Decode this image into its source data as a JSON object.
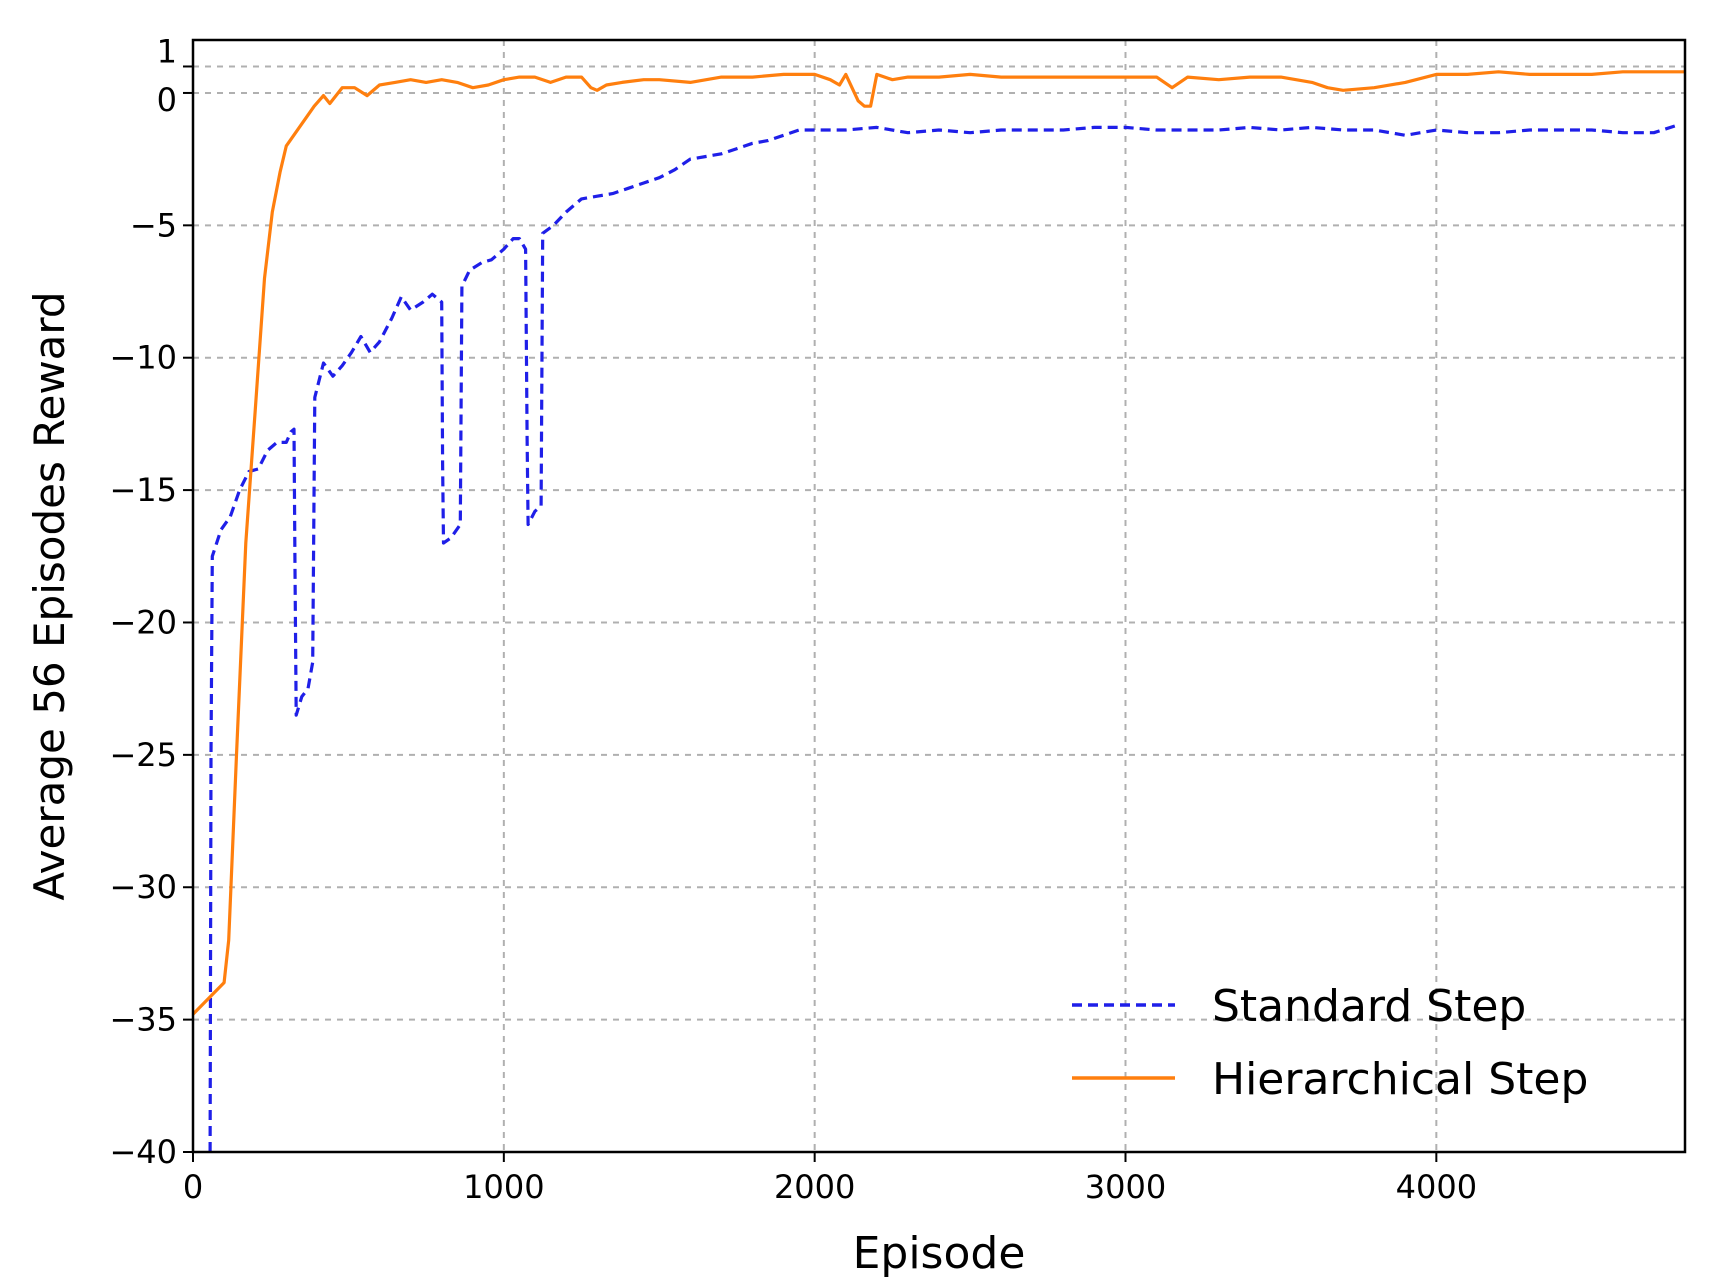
{
  "chart_data": {
    "type": "line",
    "title": "",
    "xlabel": "Episode",
    "ylabel": "Average 56 Episodes Reward",
    "xlim": [
      0,
      4800
    ],
    "ylim": [
      -40,
      2
    ],
    "xticks": [
      0,
      1000,
      2000,
      3000,
      4000
    ],
    "xtick_labels": [
      "0",
      "1000",
      "2000",
      "3000",
      "4000"
    ],
    "yticks": [
      1,
      0,
      -5,
      -10,
      -15,
      -20,
      -25,
      -30,
      -35,
      -40
    ],
    "ytick_labels": [
      "1",
      "0",
      "−5",
      "−10",
      "−15",
      "−20",
      "−25",
      "−30",
      "−35",
      "−40"
    ],
    "grid": true,
    "legend_position": "bottom-right",
    "series": [
      {
        "name": "Standard Step",
        "color": "#1f1fe8",
        "style": "dashed",
        "points": [
          [
            55,
            -40
          ],
          [
            58,
            -25
          ],
          [
            62,
            -17.5
          ],
          [
            90,
            -16.5
          ],
          [
            120,
            -16
          ],
          [
            150,
            -15
          ],
          [
            180,
            -14.3
          ],
          [
            210,
            -14.2
          ],
          [
            240,
            -13.5
          ],
          [
            270,
            -13.2
          ],
          [
            300,
            -13.2
          ],
          [
            315,
            -12.8
          ],
          [
            325,
            -12.7
          ],
          [
            328,
            -18
          ],
          [
            332,
            -23.5
          ],
          [
            350,
            -22.8
          ],
          [
            370,
            -22.5
          ],
          [
            385,
            -21.5
          ],
          [
            392,
            -11.5
          ],
          [
            420,
            -10.2
          ],
          [
            450,
            -10.7
          ],
          [
            480,
            -10.3
          ],
          [
            510,
            -9.8
          ],
          [
            540,
            -9.2
          ],
          [
            570,
            -9.8
          ],
          [
            600,
            -9.4
          ],
          [
            640,
            -8.5
          ],
          [
            670,
            -7.7
          ],
          [
            700,
            -8.2
          ],
          [
            740,
            -7.9
          ],
          [
            770,
            -7.6
          ],
          [
            800,
            -7.9
          ],
          [
            803,
            -14
          ],
          [
            806,
            -17
          ],
          [
            830,
            -16.8
          ],
          [
            860,
            -16.3
          ],
          [
            865,
            -7.3
          ],
          [
            890,
            -6.7
          ],
          [
            930,
            -6.4
          ],
          [
            960,
            -6.3
          ],
          [
            1000,
            -5.9
          ],
          [
            1030,
            -5.5
          ],
          [
            1050,
            -5.5
          ],
          [
            1070,
            -5.9
          ],
          [
            1075,
            -13
          ],
          [
            1078,
            -16.3
          ],
          [
            1100,
            -15.8
          ],
          [
            1120,
            -15.6
          ],
          [
            1125,
            -5.3
          ],
          [
            1160,
            -5.0
          ],
          [
            1200,
            -4.5
          ],
          [
            1250,
            -4.0
          ],
          [
            1300,
            -3.9
          ],
          [
            1350,
            -3.8
          ],
          [
            1400,
            -3.6
          ],
          [
            1450,
            -3.4
          ],
          [
            1500,
            -3.2
          ],
          [
            1550,
            -2.9
          ],
          [
            1600,
            -2.5
          ],
          [
            1650,
            -2.4
          ],
          [
            1700,
            -2.3
          ],
          [
            1750,
            -2.1
          ],
          [
            1800,
            -1.9
          ],
          [
            1850,
            -1.8
          ],
          [
            1900,
            -1.6
          ],
          [
            1950,
            -1.4
          ],
          [
            2000,
            -1.4
          ],
          [
            2100,
            -1.4
          ],
          [
            2200,
            -1.3
          ],
          [
            2300,
            -1.5
          ],
          [
            2400,
            -1.4
          ],
          [
            2500,
            -1.5
          ],
          [
            2600,
            -1.4
          ],
          [
            2700,
            -1.4
          ],
          [
            2800,
            -1.4
          ],
          [
            2900,
            -1.3
          ],
          [
            3000,
            -1.3
          ],
          [
            3100,
            -1.4
          ],
          [
            3200,
            -1.4
          ],
          [
            3300,
            -1.4
          ],
          [
            3400,
            -1.3
          ],
          [
            3500,
            -1.4
          ],
          [
            3600,
            -1.3
          ],
          [
            3700,
            -1.4
          ],
          [
            3800,
            -1.4
          ],
          [
            3900,
            -1.6
          ],
          [
            4000,
            -1.4
          ],
          [
            4100,
            -1.5
          ],
          [
            4200,
            -1.5
          ],
          [
            4300,
            -1.4
          ],
          [
            4400,
            -1.4
          ],
          [
            4500,
            -1.4
          ],
          [
            4600,
            -1.5
          ],
          [
            4700,
            -1.5
          ],
          [
            4780,
            -1.2
          ]
        ]
      },
      {
        "name": "Hierarchical Step",
        "color": "#ff7f0e",
        "style": "solid",
        "points": [
          [
            0,
            -34.8
          ],
          [
            100,
            -33.6
          ],
          [
            115,
            -32
          ],
          [
            140,
            -25
          ],
          [
            170,
            -17
          ],
          [
            200,
            -12
          ],
          [
            230,
            -7
          ],
          [
            255,
            -4.5
          ],
          [
            280,
            -3
          ],
          [
            300,
            -2
          ],
          [
            330,
            -1.5
          ],
          [
            360,
            -1
          ],
          [
            390,
            -0.5
          ],
          [
            420,
            -0.1
          ],
          [
            440,
            -0.4
          ],
          [
            480,
            0.2
          ],
          [
            520,
            0.2
          ],
          [
            560,
            -0.1
          ],
          [
            600,
            0.3
          ],
          [
            650,
            0.4
          ],
          [
            700,
            0.5
          ],
          [
            750,
            0.4
          ],
          [
            800,
            0.5
          ],
          [
            850,
            0.4
          ],
          [
            900,
            0.2
          ],
          [
            950,
            0.3
          ],
          [
            1000,
            0.5
          ],
          [
            1050,
            0.6
          ],
          [
            1100,
            0.6
          ],
          [
            1150,
            0.4
          ],
          [
            1200,
            0.6
          ],
          [
            1250,
            0.6
          ],
          [
            1280,
            0.2
          ],
          [
            1300,
            0.1
          ],
          [
            1330,
            0.3
          ],
          [
            1380,
            0.4
          ],
          [
            1450,
            0.5
          ],
          [
            1500,
            0.5
          ],
          [
            1600,
            0.4
          ],
          [
            1700,
            0.6
          ],
          [
            1800,
            0.6
          ],
          [
            1900,
            0.7
          ],
          [
            2000,
            0.7
          ],
          [
            2050,
            0.5
          ],
          [
            2080,
            0.3
          ],
          [
            2100,
            0.7
          ],
          [
            2140,
            -0.3
          ],
          [
            2160,
            -0.5
          ],
          [
            2180,
            -0.5
          ],
          [
            2200,
            0.7
          ],
          [
            2250,
            0.5
          ],
          [
            2300,
            0.6
          ],
          [
            2400,
            0.6
          ],
          [
            2500,
            0.7
          ],
          [
            2600,
            0.6
          ],
          [
            2700,
            0.6
          ],
          [
            2800,
            0.6
          ],
          [
            2900,
            0.6
          ],
          [
            3000,
            0.6
          ],
          [
            3100,
            0.6
          ],
          [
            3150,
            0.2
          ],
          [
            3200,
            0.6
          ],
          [
            3300,
            0.5
          ],
          [
            3400,
            0.6
          ],
          [
            3500,
            0.6
          ],
          [
            3600,
            0.4
          ],
          [
            3650,
            0.2
          ],
          [
            3700,
            0.1
          ],
          [
            3800,
            0.2
          ],
          [
            3900,
            0.4
          ],
          [
            4000,
            0.7
          ],
          [
            4100,
            0.7
          ],
          [
            4200,
            0.8
          ],
          [
            4300,
            0.7
          ],
          [
            4400,
            0.7
          ],
          [
            4500,
            0.7
          ],
          [
            4600,
            0.8
          ],
          [
            4700,
            0.8
          ],
          [
            4800,
            0.8
          ]
        ]
      }
    ]
  }
}
